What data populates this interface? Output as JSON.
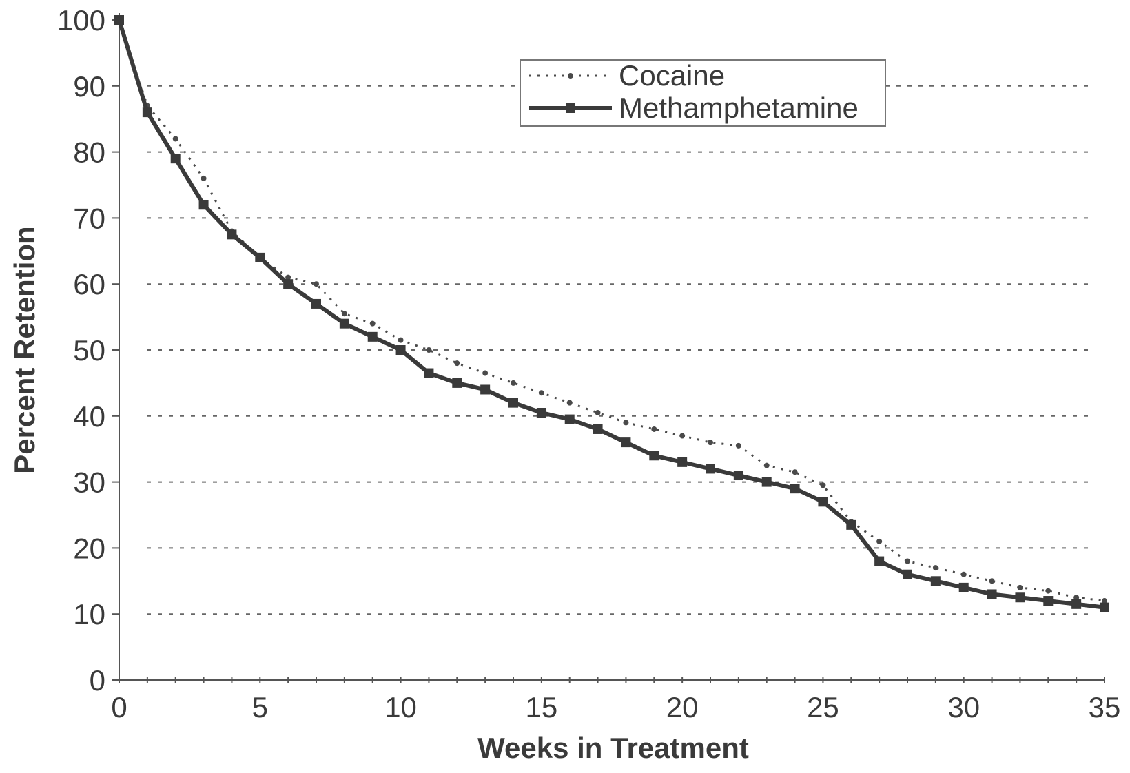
{
  "chart_data": {
    "type": "line",
    "title": "",
    "xlabel": "Weeks in Treatment",
    "ylabel": "Percent Retention",
    "xlim": [
      0,
      35
    ],
    "ylim": [
      0,
      100
    ],
    "x_ticks": [
      0,
      5,
      10,
      15,
      20,
      25,
      30,
      35
    ],
    "y_ticks": [
      0,
      10,
      20,
      30,
      40,
      50,
      60,
      70,
      80,
      90,
      100
    ],
    "grid": "horizontal dashed",
    "legend_position": "top-center",
    "series": [
      {
        "name": "Cocaine",
        "style": "dotted",
        "marker": "dot",
        "color": "#4a4a4a",
        "x": [
          0,
          1,
          2,
          3,
          4,
          5,
          6,
          7,
          8,
          9,
          10,
          11,
          12,
          13,
          14,
          15,
          16,
          17,
          18,
          19,
          20,
          21,
          22,
          23,
          24,
          25,
          26,
          27,
          28,
          29,
          30,
          31,
          32,
          33,
          34,
          35
        ],
        "values": [
          100,
          87,
          82,
          76,
          68,
          64,
          61,
          60,
          55.5,
          54,
          51.5,
          50,
          48,
          46.5,
          45,
          43.5,
          42,
          40.5,
          39,
          38,
          37,
          36,
          35.5,
          32.5,
          31.5,
          29.5,
          24,
          21,
          18,
          17,
          16,
          15,
          14,
          13.5,
          12.5,
          12
        ]
      },
      {
        "name": "Methamphetamine",
        "style": "solid",
        "marker": "square",
        "color": "#3a3a3a",
        "x": [
          0,
          1,
          2,
          3,
          4,
          5,
          6,
          7,
          8,
          9,
          10,
          11,
          12,
          13,
          14,
          15,
          16,
          17,
          18,
          19,
          20,
          21,
          22,
          23,
          24,
          25,
          26,
          27,
          28,
          29,
          30,
          31,
          32,
          33,
          34,
          35
        ],
        "values": [
          100,
          86,
          79,
          72,
          67.5,
          64,
          60,
          57,
          54,
          52,
          50,
          46.5,
          45,
          44,
          42,
          40.5,
          39.5,
          38,
          36,
          34,
          33,
          32,
          31,
          30,
          29,
          27,
          23.5,
          18,
          16,
          15,
          14,
          13,
          12.5,
          12,
          11.5,
          11
        ]
      }
    ]
  }
}
